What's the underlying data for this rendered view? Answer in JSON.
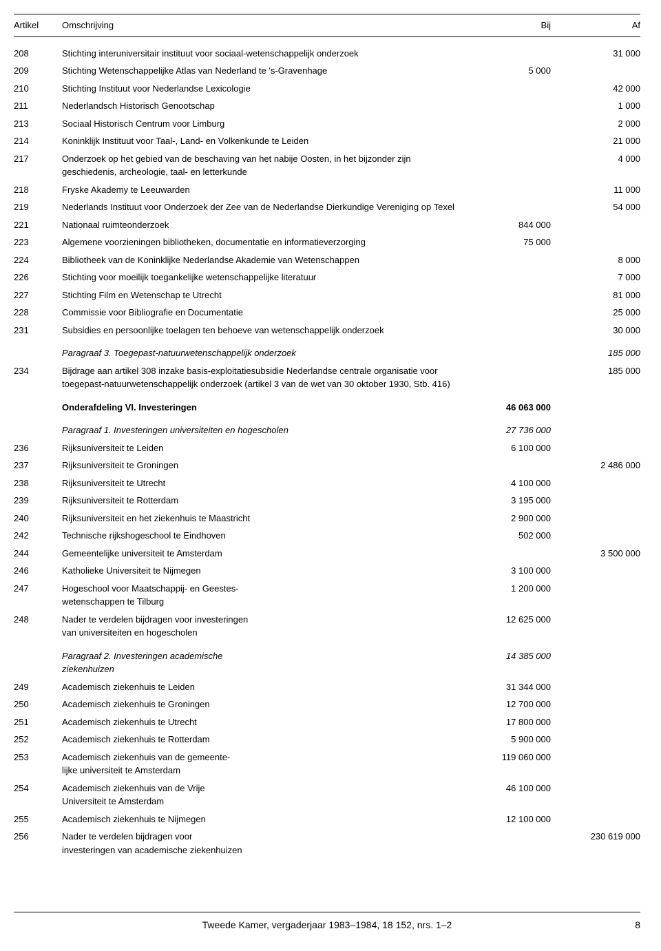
{
  "headers": {
    "artikel": "Artikel",
    "omschrijving": "Omschrijving",
    "bij": "Bij",
    "af": "Af"
  },
  "rows": [
    {
      "art": "208",
      "desc": "Stichting interuniversitair instituut voor sociaal-wetenschappelijk onderzoek",
      "bij": "",
      "af": "31 000"
    },
    {
      "art": "209",
      "desc": "Stichting Wetenschappelijke Atlas van Nederland te 's-Gravenhage",
      "bij": "5 000",
      "af": ""
    },
    {
      "art": "210",
      "desc": "Stichting Instituut voor Nederlandse Lexicologie",
      "bij": "",
      "af": "42 000"
    },
    {
      "art": "211",
      "desc": "Nederlandsch Historisch Genootschap",
      "bij": "",
      "af": "1 000"
    },
    {
      "art": "213",
      "desc": "Sociaal Historisch Centrum voor Limburg",
      "bij": "",
      "af": "2 000"
    },
    {
      "art": "214",
      "desc": "Koninklijk Instituut voor Taal-, Land- en Volkenkunde te Leiden",
      "bij": "",
      "af": "21 000"
    },
    {
      "art": "217",
      "desc": "Onderzoek op het gebied van de beschaving van het nabije Oosten, in het bijzonder zijn geschiedenis, archeologie, taal- en letterkunde",
      "bij": "",
      "af": "4 000"
    },
    {
      "art": "218",
      "desc": "Fryske Akademy te Leeuwarden",
      "bij": "",
      "af": "11 000"
    },
    {
      "art": "219",
      "desc": "Nederlands Instituut voor Onderzoek der Zee van de Nederlandse Dierkundige Vereniging op Texel",
      "bij": "",
      "af": "54 000"
    },
    {
      "art": "221",
      "desc": "Nationaal ruimteonderzoek",
      "bij": "844 000",
      "af": ""
    },
    {
      "art": "223",
      "desc": "Algemene voorzieningen bibliotheken, documentatie en informatieverzorging",
      "bij": "75 000",
      "af": ""
    },
    {
      "art": "224",
      "desc": "Bibliotheek van de Koninklijke Nederlandse Akademie van Wetenschappen",
      "bij": "",
      "af": "8 000"
    },
    {
      "art": "226",
      "desc": "Stichting voor moeilijk toegankelijke wetenschappelijke literatuur",
      "bij": "",
      "af": "7 000"
    },
    {
      "art": "227",
      "desc": "Stichting Film en Wetenschap te Utrecht",
      "bij": "",
      "af": "81 000"
    },
    {
      "art": "228",
      "desc": "Commissie voor Bibliografie en Documentatie",
      "bij": "",
      "af": "25 000"
    },
    {
      "art": "231",
      "desc": "Subsidies en persoonlijke toelagen ten behoeve van wetenschappelijk onderzoek",
      "bij": "",
      "af": "30 000",
      "spacer": true
    },
    {
      "art": "",
      "desc": "Paragraaf 3.  Toegepast-natuurwetenschappelijk onderzoek",
      "bij": "",
      "af": "185 000",
      "italic": true
    },
    {
      "art": "234",
      "desc": "Bijdrage aan artikel 308 inzake basis-exploitatiesubsidie Nederlandse centrale organisatie voor toegepast-natuurwetenschappelijk onderzoek (artikel 3 van de wet van 30 oktober 1930, Stb. 416)",
      "bij": "",
      "af": "185 000",
      "spacer": true
    },
    {
      "art": "",
      "desc": "Onderafdeling VI.  Investeringen",
      "bij": "46 063 000",
      "af": "",
      "bold": true,
      "spacer": true
    },
    {
      "art": "",
      "desc": "Paragraaf 1.  Investeringen universiteiten en hogescholen",
      "bij": "27 736 000",
      "af": "",
      "italic": true
    },
    {
      "art": "236",
      "desc": "Rijksuniversiteit te Leiden",
      "bij": "6 100 000",
      "af": ""
    },
    {
      "art": "237",
      "desc": "Rijksuniversiteit te Groningen",
      "bij": "",
      "af": "2 486 000"
    },
    {
      "art": "238",
      "desc": "Rijksuniversiteit te Utrecht",
      "bij": "4 100 000",
      "af": ""
    },
    {
      "art": "239",
      "desc": "Rijksuniversiteit te Rotterdam",
      "bij": "3 195 000",
      "af": ""
    },
    {
      "art": "240",
      "desc": "Rijksuniversiteit en het ziekenhuis te Maastricht",
      "bij": "2 900 000",
      "af": ""
    },
    {
      "art": "242",
      "desc": "Technische rijkshogeschool te Eindhoven",
      "bij": "502 000",
      "af": ""
    },
    {
      "art": "244",
      "desc": "Gemeentelijke universiteit te Amsterdam",
      "bij": "",
      "af": "3 500 000"
    },
    {
      "art": "246",
      "desc": "Katholieke Universiteit te Nijmegen",
      "bij": "3 100 000",
      "af": ""
    },
    {
      "art": "247",
      "desc": "Hogeschool voor Maatschappij- en Geestes-\nwetenschappen te Tilburg",
      "bij": "1 200 000",
      "af": ""
    },
    {
      "art": "248",
      "desc": "Nader te verdelen bijdragen voor investeringen\nvan universiteiten en hogescholen",
      "bij": "12 625 000",
      "af": "",
      "spacer": true
    },
    {
      "art": "",
      "desc": "Paragraaf 2.  Investeringen academische\nziekenhuizen",
      "bij": "14 385 000",
      "af": "",
      "italic": true
    },
    {
      "art": "249",
      "desc": "Academisch ziekenhuis te Leiden",
      "bij": "31 344 000",
      "af": ""
    },
    {
      "art": "250",
      "desc": "Academisch ziekenhuis te Groningen",
      "bij": "12 700 000",
      "af": ""
    },
    {
      "art": "251",
      "desc": "Academisch ziekenhuis te Utrecht",
      "bij": "17 800 000",
      "af": ""
    },
    {
      "art": "252",
      "desc": "Academisch ziekenhuis te Rotterdam",
      "bij": "5 900 000",
      "af": ""
    },
    {
      "art": "253",
      "desc": "Academisch ziekenhuis van de gemeente-\nlijke universiteit te Amsterdam",
      "bij": "119 060 000",
      "af": ""
    },
    {
      "art": "254",
      "desc": "Academisch ziekenhuis van de Vrije\nUniversiteit te Amsterdam",
      "bij": "46 100 000",
      "af": ""
    },
    {
      "art": "255",
      "desc": "Academisch ziekenhuis te Nijmegen",
      "bij": "12 100 000",
      "af": ""
    },
    {
      "art": "256",
      "desc": "Nader te verdelen bijdragen voor\ninvesteringen van academische ziekenhuizen",
      "bij": "",
      "af": "230 619 000"
    }
  ],
  "footer": {
    "text": "Tweede Kamer, vergaderjaar 1983–1984, 18 152, nrs. 1–2",
    "page": "8"
  }
}
